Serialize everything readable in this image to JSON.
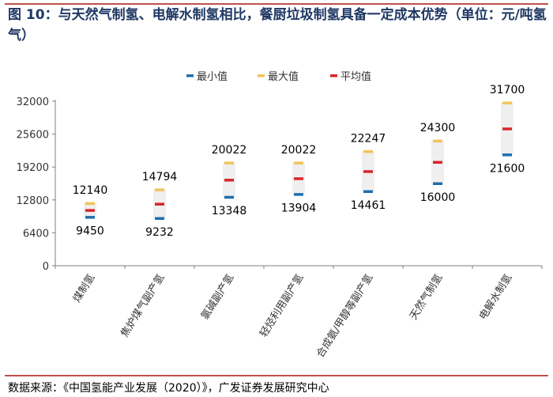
{
  "figure": {
    "title": "图 10：与天然气制氢、电解水制氢相比，餐厨垃圾制氢具备一定成本优势（单位：元/吨氢气）",
    "source": "数据来源：《中国氢能产业发展（2020）》，广发证券发展研究中心"
  },
  "chart_data": {
    "type": "range",
    "title": "",
    "ylabel": "元/吨氢气",
    "ylim": [
      0,
      32000
    ],
    "yticks": [
      0,
      6400,
      12800,
      19200,
      25600,
      32000
    ],
    "legend": [
      {
        "name": "最小值",
        "color": "#1f6fae"
      },
      {
        "name": "最大值",
        "color": "#f2c45a"
      },
      {
        "name": "平均值",
        "color": "#d9262b"
      }
    ],
    "categories": [
      "煤制氢",
      "焦炉煤气副产氢",
      "氯碱副产氢",
      "轻烃利用副产氢",
      "合成氨/甲醇等副产氢",
      "天然气制氢",
      "电解水制氢"
    ],
    "series": [
      {
        "name": "最小值",
        "values": [
          9450,
          9232,
          13348,
          13904,
          14461,
          16000,
          21600
        ]
      },
      {
        "name": "最大值",
        "values": [
          12140,
          14794,
          20022,
          20022,
          22247,
          24300,
          31700
        ]
      },
      {
        "name": "平均值",
        "values": [
          10795,
          12013,
          16685,
          16963,
          18354,
          20150,
          26650
        ]
      }
    ],
    "data_labels": {
      "min": [
        "9450",
        "9232",
        "13348",
        "13904",
        "14461",
        "16000",
        "21600"
      ],
      "max": [
        "12140",
        "14794",
        "20022",
        "20022",
        "22247",
        "24300",
        "31700"
      ]
    }
  }
}
